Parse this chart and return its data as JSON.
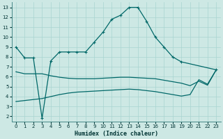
{
  "background_color": "#cde8e4",
  "grid_color": "#a8d4d0",
  "line_color": "#006868",
  "xlabel": "Humidex (Indice chaleur)",
  "xlim": [
    -0.5,
    23.5
  ],
  "ylim": [
    1.5,
    13.5
  ],
  "xticks": [
    0,
    1,
    2,
    3,
    4,
    5,
    6,
    7,
    8,
    9,
    10,
    11,
    12,
    13,
    14,
    15,
    16,
    17,
    18,
    19,
    20,
    21,
    22,
    23
  ],
  "yticks": [
    2,
    3,
    4,
    5,
    6,
    7,
    8,
    9,
    10,
    11,
    12,
    13
  ],
  "curve_main_x": [
    0,
    1,
    2,
    3,
    4,
    5,
    6,
    7,
    8,
    9,
    10,
    11,
    12,
    13,
    14,
    15,
    16,
    17,
    18,
    19,
    23
  ],
  "curve_main_y": [
    9.0,
    7.9,
    7.9,
    1.8,
    7.6,
    8.5,
    8.5,
    8.5,
    8.5,
    9.5,
    10.5,
    11.8,
    12.2,
    13.0,
    13.0,
    11.6,
    10.0,
    9.0,
    8.0,
    7.5,
    6.7
  ],
  "curve_upper_x": [
    0,
    1,
    2,
    3,
    4,
    5,
    6,
    7,
    8,
    9,
    10,
    11,
    12,
    13,
    14,
    15,
    16,
    17,
    18,
    19,
    20,
    21,
    22,
    23
  ],
  "curve_upper_y": [
    6.5,
    6.3,
    6.3,
    6.3,
    6.1,
    5.95,
    5.85,
    5.8,
    5.8,
    5.8,
    5.85,
    5.9,
    5.95,
    5.95,
    5.9,
    5.85,
    5.8,
    5.65,
    5.5,
    5.35,
    5.1,
    5.55,
    5.15,
    6.7
  ],
  "curve_lower_x": [
    0,
    1,
    2,
    3,
    4,
    5,
    6,
    7,
    8,
    9,
    10,
    11,
    12,
    13,
    14,
    15,
    16,
    17,
    18,
    19,
    20,
    21,
    22,
    23
  ],
  "curve_lower_y": [
    3.5,
    3.6,
    3.7,
    3.8,
    4.0,
    4.2,
    4.35,
    4.45,
    4.5,
    4.55,
    4.6,
    4.65,
    4.7,
    4.75,
    4.7,
    4.6,
    4.5,
    4.35,
    4.2,
    4.05,
    4.2,
    5.7,
    5.25,
    6.7
  ]
}
